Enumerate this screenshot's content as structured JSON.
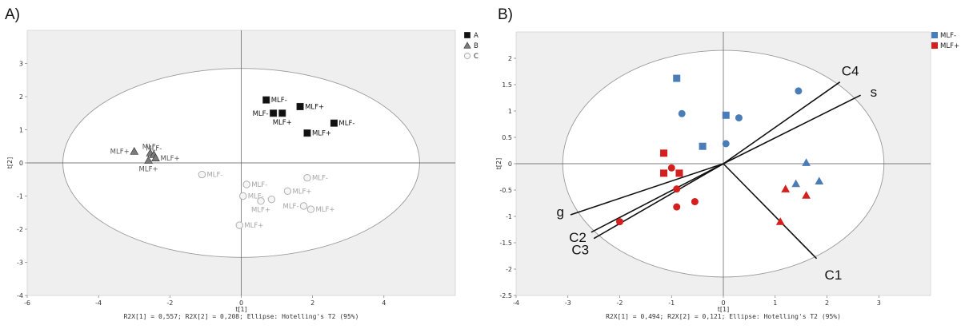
{
  "panels": [
    {
      "label": "A)",
      "xlabel": "t[1]",
      "ylabel": "t[2]",
      "footer": "R2X[1] = 0,557; R2X[2] = 0,208; Ellipse: Hotelling's T2 (95%)"
    },
    {
      "label": "B)",
      "xlabel": "t[1]",
      "ylabel": "t[2]",
      "footer": "R2X[1] = 0,494; R2X[2] = 0,121; Ellipse: Hotelling's T2 (95%)"
    }
  ],
  "colors": {
    "A": "#111111",
    "B": "#7a7a7a",
    "C": "#b0b0b0",
    "MLF-": "#4a7db8",
    "MLF+": "#d41f1f",
    "plot_bg": "#efefef",
    "vector": "#111111"
  },
  "chart_data": [
    {
      "type": "scatter",
      "xlim": [
        -6,
        6
      ],
      "ylim": [
        -4,
        4
      ],
      "xticks": [
        -6,
        -4,
        -2,
        0,
        2,
        4
      ],
      "yticks": [
        -4,
        -3,
        -2,
        -1,
        0,
        1,
        2,
        3
      ],
      "grid": false,
      "ellipse": {
        "cx": 0,
        "cy": 0,
        "rx": 5.0,
        "ry": 2.85
      },
      "legend": {
        "placement": "top-right",
        "entries": [
          {
            "name": "A",
            "marker": "square"
          },
          {
            "name": "B",
            "marker": "triangle"
          },
          {
            "name": "C",
            "marker": "circle-open"
          }
        ]
      },
      "series": [
        {
          "name": "A",
          "marker": "square",
          "points": [
            {
              "x": 0.7,
              "y": 1.9,
              "label": "MLF-",
              "pos": "right"
            },
            {
              "x": 0.9,
              "y": 1.5,
              "label": "MLF-",
              "pos": "left"
            },
            {
              "x": 1.15,
              "y": 1.5,
              "label": "MLF+",
              "pos": "below"
            },
            {
              "x": 1.65,
              "y": 1.7,
              "label": "MLF+",
              "pos": "right"
            },
            {
              "x": 2.6,
              "y": 1.2,
              "label": "MLF-",
              "pos": "right"
            },
            {
              "x": 1.85,
              "y": 0.9,
              "label": "MLF+",
              "pos": "right"
            }
          ]
        },
        {
          "name": "B",
          "marker": "triangle",
          "points": [
            {
              "x": -3.0,
              "y": 0.35,
              "label": "MLF+",
              "pos": "left"
            },
            {
              "x": -2.55,
              "y": 0.3,
              "label": "MLF-",
              "pos": "above"
            },
            {
              "x": -2.45,
              "y": 0.25,
              "label": "MLF-",
              "pos": "above"
            },
            {
              "x": -2.4,
              "y": 0.15,
              "label": "MLF+",
              "pos": "right"
            },
            {
              "x": -2.6,
              "y": 0.08,
              "label": "MLF+",
              "pos": "below"
            }
          ]
        },
        {
          "name": "C",
          "marker": "circle-open",
          "points": [
            {
              "x": -1.1,
              "y": -0.35,
              "label": "MLF-",
              "pos": "right"
            },
            {
              "x": 0.15,
              "y": -0.65,
              "label": "MLF-",
              "pos": "right"
            },
            {
              "x": 0.05,
              "y": -1.0,
              "label": "MLF-",
              "pos": "right"
            },
            {
              "x": 0.55,
              "y": -1.15,
              "label": "MLF+",
              "pos": "below"
            },
            {
              "x": 0.85,
              "y": -1.1,
              "label": "",
              "pos": "right"
            },
            {
              "x": 1.3,
              "y": -0.85,
              "label": "MLF+",
              "pos": "right"
            },
            {
              "x": 1.85,
              "y": -0.45,
              "label": "MLF-",
              "pos": "right"
            },
            {
              "x": 1.75,
              "y": -1.3,
              "label": "MLF-",
              "pos": "left"
            },
            {
              "x": 1.95,
              "y": -1.4,
              "label": "MLF+",
              "pos": "right"
            },
            {
              "x": -0.05,
              "y": -1.88,
              "label": "MLF+",
              "pos": "right"
            }
          ]
        }
      ]
    },
    {
      "type": "scatter",
      "xlim": [
        -4,
        4
      ],
      "ylim": [
        -2.5,
        2.5
      ],
      "xticks": [
        -4,
        -3,
        -2,
        -1,
        0,
        1,
        2,
        3
      ],
      "yticks": [
        -2.5,
        -2,
        -1.5,
        -1,
        -0.5,
        0,
        0.5,
        1,
        1.5,
        2
      ],
      "grid": false,
      "ellipse": {
        "cx": 0,
        "cy": 0,
        "rx": 3.1,
        "ry": 2.15
      },
      "legend": {
        "placement": "top-right",
        "entries": [
          {
            "name": "MLF-",
            "marker": "square"
          },
          {
            "name": "MLF+",
            "marker": "square"
          }
        ]
      },
      "series": [
        {
          "name": "MLF-",
          "points": [
            {
              "x": -0.9,
              "y": 1.62,
              "marker": "square"
            },
            {
              "x": 0.05,
              "y": 0.92,
              "marker": "square"
            },
            {
              "x": -0.4,
              "y": 0.33,
              "marker": "square"
            },
            {
              "x": -0.8,
              "y": 0.95,
              "marker": "circle"
            },
            {
              "x": 0.3,
              "y": 0.87,
              "marker": "circle"
            },
            {
              "x": 0.05,
              "y": 0.38,
              "marker": "circle"
            },
            {
              "x": 1.45,
              "y": 1.38,
              "marker": "circle"
            },
            {
              "x": 1.6,
              "y": 0.02,
              "marker": "triangle"
            },
            {
              "x": 1.85,
              "y": -0.33,
              "marker": "triangle"
            },
            {
              "x": 1.4,
              "y": -0.38,
              "marker": "triangle"
            }
          ]
        },
        {
          "name": "MLF+",
          "points": [
            {
              "x": -1.15,
              "y": 0.2,
              "marker": "square"
            },
            {
              "x": -1.15,
              "y": -0.18,
              "marker": "square"
            },
            {
              "x": -0.85,
              "y": -0.18,
              "marker": "square"
            },
            {
              "x": -1.0,
              "y": -0.08,
              "marker": "circle"
            },
            {
              "x": -0.9,
              "y": -0.48,
              "marker": "circle"
            },
            {
              "x": -0.55,
              "y": -0.72,
              "marker": "circle"
            },
            {
              "x": -0.9,
              "y": -0.82,
              "marker": "circle"
            },
            {
              "x": -2.0,
              "y": -1.1,
              "marker": "circle"
            },
            {
              "x": 1.2,
              "y": -0.48,
              "marker": "triangle"
            },
            {
              "x": 1.6,
              "y": -0.6,
              "marker": "triangle"
            },
            {
              "x": 1.1,
              "y": -1.1,
              "marker": "triangle"
            }
          ]
        }
      ],
      "loadings": [
        {
          "name": "C4",
          "x": 2.25,
          "y": 1.55
        },
        {
          "name": "s",
          "x": 2.65,
          "y": 1.3
        },
        {
          "name": "g",
          "x": -2.95,
          "y": -0.97
        },
        {
          "name": "C2",
          "x": -2.55,
          "y": -1.3
        },
        {
          "name": "C3",
          "x": -2.5,
          "y": -1.42
        },
        {
          "name": "C1",
          "x": 1.8,
          "y": -1.8
        }
      ]
    }
  ]
}
